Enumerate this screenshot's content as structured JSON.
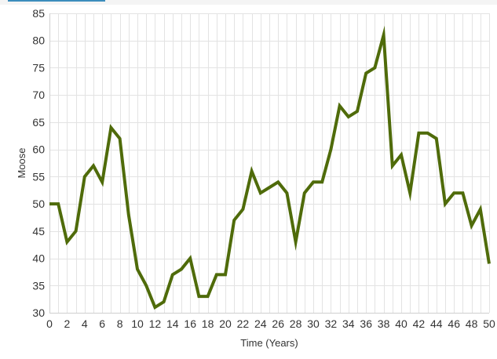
{
  "chart_data": {
    "type": "line",
    "xlabel": "Time (Years)",
    "ylabel": "Moose",
    "xlim": [
      0,
      50
    ],
    "ylim": [
      30,
      85
    ],
    "x_ticks": [
      0,
      2,
      4,
      6,
      8,
      10,
      12,
      14,
      16,
      18,
      20,
      22,
      24,
      26,
      28,
      30,
      32,
      34,
      36,
      38,
      40,
      42,
      44,
      46,
      48,
      50
    ],
    "y_ticks": [
      30,
      35,
      40,
      45,
      50,
      55,
      60,
      65,
      70,
      75,
      80,
      85
    ],
    "grid": true,
    "legend": "none",
    "series": [
      {
        "color": "#4f6b0a",
        "x": [
          0,
          1,
          2,
          3,
          4,
          5,
          6,
          7,
          8,
          9,
          10,
          11,
          12,
          13,
          14,
          15,
          16,
          17,
          18,
          19,
          20,
          21,
          22,
          23,
          24,
          25,
          26,
          27,
          28,
          29,
          30,
          31,
          32,
          33,
          34,
          35,
          36,
          37,
          38,
          39,
          40,
          41,
          42,
          43,
          44,
          45,
          46,
          47,
          48,
          49,
          50
        ],
        "values": [
          50,
          50,
          43,
          45,
          55,
          57,
          54,
          64,
          62,
          48,
          38,
          35,
          31,
          32,
          37,
          38,
          40,
          33,
          33,
          37,
          37,
          47,
          49,
          56,
          52,
          53,
          54,
          52,
          43,
          52,
          54,
          54,
          60,
          68,
          66,
          67,
          74,
          75,
          81,
          57,
          59,
          52,
          63,
          63,
          62,
          50,
          52,
          52,
          46,
          49,
          39
        ]
      }
    ]
  }
}
